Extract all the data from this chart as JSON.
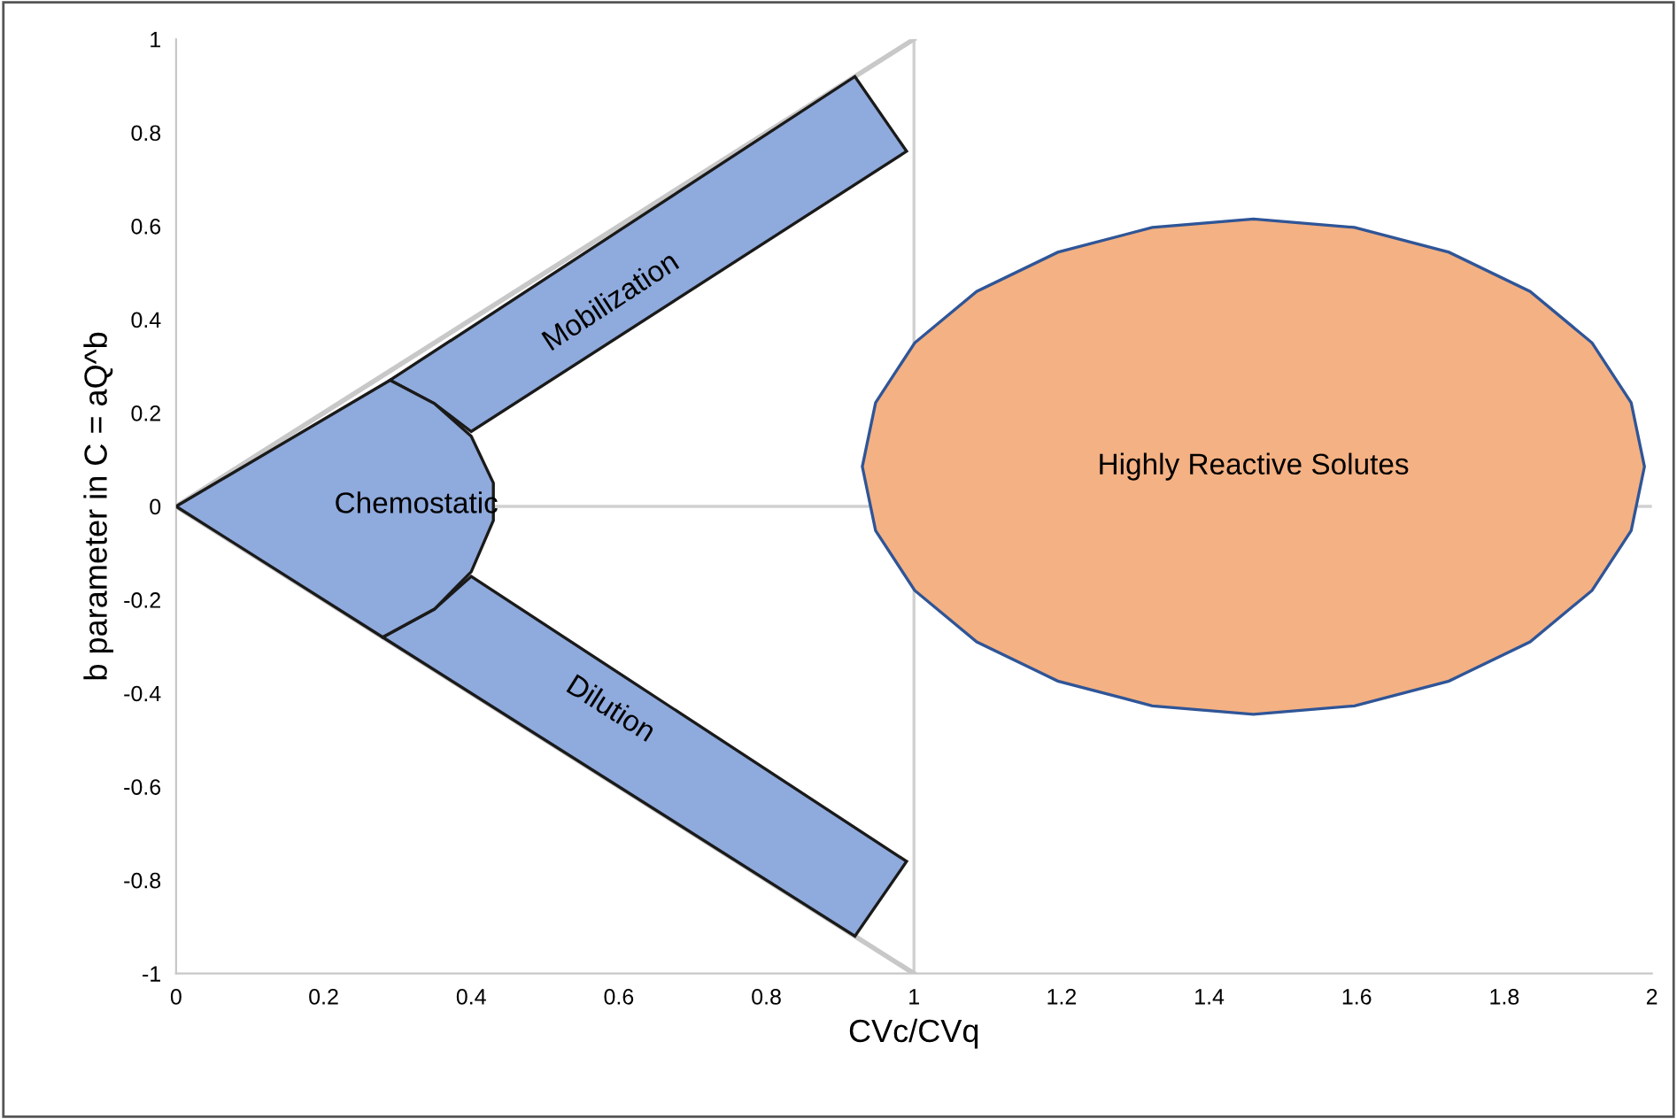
{
  "chart_data": {
    "type": "line",
    "xlabel": "CVc/CVq",
    "ylabel": "b parameter in C = aQ^b",
    "xlim": [
      0,
      2
    ],
    "ylim": [
      -1,
      1
    ],
    "xticks": [
      0,
      0.2,
      0.4,
      0.6,
      0.8,
      1,
      1.2,
      1.4,
      1.6,
      1.8,
      2
    ],
    "yticks": [
      -1,
      -0.8,
      -0.6,
      -0.4,
      -0.2,
      0,
      0.2,
      0.4,
      0.6,
      0.8,
      1
    ],
    "grid": false,
    "legend": false,
    "marker": "none",
    "line_style": "solid",
    "ref_lines": [
      {
        "axis": "x",
        "value": 1,
        "color": "#d0d0d0"
      },
      {
        "axis": "y",
        "value": 0,
        "color": "#d0d0d0"
      }
    ],
    "series": [
      {
        "color": "#c8c8c8",
        "x": [
          0,
          1
        ],
        "values": [
          0,
          1
        ]
      },
      {
        "color": "#c8c8c8",
        "x": [
          0,
          1
        ],
        "values": [
          0,
          -1
        ]
      },
      {
        "type": "area",
        "name": "Mobilization",
        "color": "#8faadc",
        "x": [
          0.29,
          0.92,
          0.99,
          0.4,
          0.35,
          0.29
        ],
        "values": [
          0.27,
          0.92,
          0.76,
          0.16,
          0.22,
          0.27
        ]
      },
      {
        "type": "area",
        "name": "Dilution",
        "color": "#8faadc",
        "x": [
          0.28,
          0.92,
          0.99,
          0.4,
          0.35,
          0.28
        ],
        "values": [
          -0.28,
          -0.92,
          -0.76,
          -0.15,
          -0.22,
          -0.28
        ]
      },
      {
        "type": "area",
        "name": "Chemostatic",
        "color": "#8faadc",
        "x": [
          0,
          0.29,
          0.35,
          0.4,
          0.43,
          0.43,
          0.4,
          0.35,
          0.28,
          0
        ],
        "values": [
          0,
          0.27,
          0.22,
          0.15,
          0.05,
          -0.03,
          -0.14,
          -0.22,
          -0.28,
          0
        ]
      },
      {
        "type": "area",
        "name": "Highly Reactive Solutes",
        "color": "#f4b183",
        "x": [
          1.99,
          1.972,
          1.919,
          1.835,
          1.725,
          1.597,
          1.46,
          1.323,
          1.195,
          1.085,
          1.001,
          0.948,
          0.93,
          0.948,
          1.001,
          1.085,
          1.195,
          1.323,
          1.46,
          1.597,
          1.725,
          1.835,
          1.919,
          1.972,
          1.99
        ],
        "values": [
          0.085,
          0.222,
          0.35,
          0.46,
          0.544,
          0.597,
          0.615,
          0.597,
          0.544,
          0.46,
          0.35,
          0.222,
          0.085,
          -0.052,
          -0.18,
          -0.29,
          -0.374,
          -0.427,
          -0.445,
          -0.427,
          -0.374,
          -0.29,
          -0.18,
          -0.052,
          0.085
        ]
      }
    ]
  }
}
